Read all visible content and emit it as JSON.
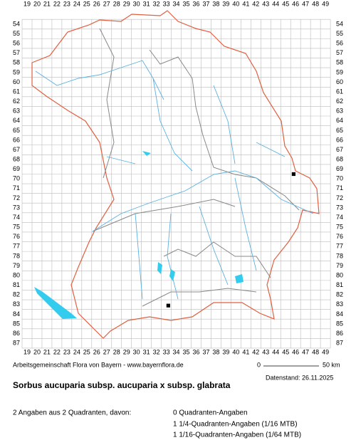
{
  "map": {
    "x_labels": [
      19,
      20,
      21,
      22,
      23,
      24,
      25,
      26,
      27,
      28,
      29,
      30,
      31,
      32,
      33,
      34,
      35,
      36,
      37,
      38,
      39,
      40,
      41,
      42,
      43,
      44,
      45,
      46,
      47,
      48,
      49
    ],
    "y_labels": [
      54,
      55,
      56,
      57,
      58,
      59,
      60,
      61,
      62,
      63,
      64,
      65,
      66,
      67,
      68,
      69,
      70,
      71,
      72,
      73,
      74,
      75,
      76,
      77,
      78,
      79,
      80,
      81,
      82,
      83,
      84,
      85,
      86,
      87
    ],
    "records": [
      {
        "x": 45.8,
        "y": 69.5
      },
      {
        "x": 33.2,
        "y": 83.1
      }
    ]
  },
  "footer": {
    "credit": "Arbeitsgemeinschaft Flora von Bayern - www.bayernflora.de",
    "scale_start": "0",
    "scale_end": "50 km",
    "date": "Datenstand: 26.11.2025"
  },
  "title": "Sorbus aucuparia subsp. aucuparia x subsp. glabrata",
  "summary": {
    "total": "2 Angaben aus 2 Quadranten, davon:",
    "lines": [
      "0 Quadranten-Angaben",
      "1 1/4-Quadranten-Angaben (1/16 MTB)",
      "1 1/16-Quadranten-Angaben (1/64 MTB)"
    ]
  }
}
